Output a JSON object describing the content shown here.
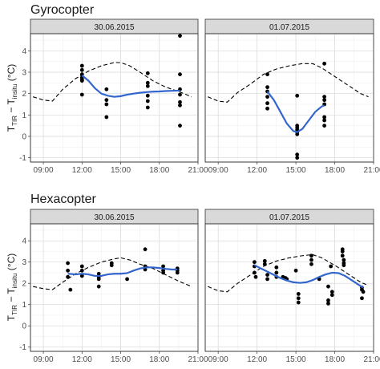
{
  "chart_data": [
    {
      "type": "scatter",
      "title": "Gyrocopter",
      "ylabel_main": "T",
      "ylabel_sub1": "TIR",
      "ylabel_mid": " − T",
      "ylabel_sub2": "insitu",
      "ylabel_unit": " (°C)",
      "ylim": [
        -1.2,
        4.8
      ],
      "yticks": [
        "-1",
        "0",
        "1",
        "2",
        "3",
        "4"
      ],
      "xlim": [
        8.0,
        21.0
      ],
      "xticks": [
        "09:00",
        "12:00",
        "15:00",
        "18:00",
        "21:00"
      ],
      "grid": true,
      "facets": [
        {
          "label": "30.06.2015",
          "points": [
            [
              12.0,
              3.3
            ],
            [
              12.0,
              3.1
            ],
            [
              12.0,
              2.9
            ],
            [
              12.0,
              2.75
            ],
            [
              12.0,
              2.65
            ],
            [
              12.0,
              2.6
            ],
            [
              12.0,
              1.95
            ],
            [
              13.9,
              2.2
            ],
            [
              13.9,
              1.7
            ],
            [
              13.9,
              1.5
            ],
            [
              13.9,
              0.9
            ],
            [
              17.1,
              2.95
            ],
            [
              17.1,
              2.5
            ],
            [
              17.1,
              2.35
            ],
            [
              17.1,
              1.9
            ],
            [
              17.1,
              1.65
            ],
            [
              17.1,
              1.35
            ],
            [
              19.6,
              4.7
            ],
            [
              19.6,
              2.9
            ],
            [
              19.6,
              2.2
            ],
            [
              19.6,
              1.95
            ],
            [
              19.6,
              1.6
            ],
            [
              19.6,
              1.45
            ],
            [
              19.6,
              0.5
            ]
          ],
          "smooth": [
            [
              12.0,
              2.85
            ],
            [
              12.5,
              2.6
            ],
            [
              13.0,
              2.25
            ],
            [
              13.5,
              2.0
            ],
            [
              14.0,
              1.9
            ],
            [
              14.5,
              1.85
            ],
            [
              15.0,
              1.88
            ],
            [
              15.5,
              1.95
            ],
            [
              16.0,
              2.0
            ],
            [
              16.5,
              2.04
            ],
            [
              17.0,
              2.07
            ],
            [
              17.5,
              2.09
            ],
            [
              18.0,
              2.1
            ],
            [
              18.5,
              2.12
            ],
            [
              19.0,
              2.13
            ],
            [
              19.6,
              2.14
            ]
          ],
          "insitu_dashed": [
            [
              8.2,
              1.85
            ],
            [
              9.0,
              1.7
            ],
            [
              9.7,
              1.65
            ],
            [
              10.5,
              2.2
            ],
            [
              11.5,
              2.7
            ],
            [
              12.5,
              3.05
            ],
            [
              13.5,
              3.3
            ],
            [
              14.5,
              3.45
            ],
            [
              15.0,
              3.45
            ],
            [
              15.7,
              3.3
            ],
            [
              16.5,
              3.0
            ],
            [
              17.5,
              2.6
            ],
            [
              18.5,
              2.3
            ],
            [
              19.5,
              2.1
            ],
            [
              20.5,
              1.85
            ]
          ]
        },
        {
          "label": "01.07.2015",
          "points": [
            [
              12.8,
              2.9
            ],
            [
              12.8,
              2.3
            ],
            [
              12.8,
              2.1
            ],
            [
              12.8,
              1.85
            ],
            [
              12.8,
              1.55
            ],
            [
              12.8,
              1.3
            ],
            [
              15.1,
              1.9
            ],
            [
              15.1,
              0.5
            ],
            [
              15.1,
              0.4
            ],
            [
              15.1,
              0.3
            ],
            [
              15.1,
              0.2
            ],
            [
              15.1,
              0.1
            ],
            [
              15.1,
              -0.85
            ],
            [
              15.1,
              -1.0
            ],
            [
              17.2,
              3.4
            ],
            [
              17.2,
              1.85
            ],
            [
              17.2,
              1.7
            ],
            [
              17.2,
              1.5
            ],
            [
              17.2,
              0.9
            ],
            [
              17.2,
              0.75
            ],
            [
              17.2,
              0.5
            ]
          ],
          "smooth": [
            [
              12.8,
              2.1
            ],
            [
              13.3,
              1.7
            ],
            [
              13.8,
              1.15
            ],
            [
              14.3,
              0.6
            ],
            [
              14.8,
              0.25
            ],
            [
              15.1,
              0.2
            ],
            [
              15.5,
              0.35
            ],
            [
              16.0,
              0.75
            ],
            [
              16.5,
              1.15
            ],
            [
              17.0,
              1.4
            ],
            [
              17.2,
              1.45
            ]
          ],
          "insitu_dashed": [
            [
              8.2,
              1.85
            ],
            [
              9.0,
              1.65
            ],
            [
              9.7,
              1.6
            ],
            [
              10.5,
              2.05
            ],
            [
              11.5,
              2.45
            ],
            [
              12.5,
              2.9
            ],
            [
              13.5,
              3.15
            ],
            [
              14.5,
              3.3
            ],
            [
              15.5,
              3.4
            ],
            [
              16.3,
              3.4
            ],
            [
              17.0,
              3.2
            ],
            [
              18.0,
              2.8
            ],
            [
              19.0,
              2.4
            ],
            [
              20.0,
              2.0
            ],
            [
              20.6,
              1.85
            ]
          ]
        }
      ]
    },
    {
      "type": "scatter",
      "title": "Hexacopter",
      "ylabel_main": "T",
      "ylabel_sub1": "TIR",
      "ylabel_mid": " − T",
      "ylabel_sub2": "insitu",
      "ylabel_unit": " (°C)",
      "ylim": [
        -1.2,
        4.8
      ],
      "yticks": [
        "-1",
        "0",
        "1",
        "2",
        "3",
        "4"
      ],
      "xlim": [
        8.0,
        21.0
      ],
      "xticks": [
        "09:00",
        "12:00",
        "15:00",
        "18:00",
        "21:00"
      ],
      "grid": true,
      "facets": [
        {
          "label": "30.06.2015",
          "points": [
            [
              10.9,
              2.95
            ],
            [
              10.9,
              2.6
            ],
            [
              10.9,
              2.3
            ],
            [
              11.1,
              1.7
            ],
            [
              12.0,
              2.8
            ],
            [
              12.0,
              2.6
            ],
            [
              12.0,
              2.35
            ],
            [
              13.3,
              2.45
            ],
            [
              13.3,
              2.3
            ],
            [
              13.3,
              2.2
            ],
            [
              13.3,
              1.85
            ],
            [
              14.3,
              2.95
            ],
            [
              14.3,
              2.85
            ],
            [
              15.5,
              2.2
            ],
            [
              16.9,
              3.6
            ],
            [
              16.9,
              2.8
            ],
            [
              16.9,
              2.65
            ],
            [
              18.3,
              2.8
            ],
            [
              18.3,
              2.6
            ],
            [
              18.3,
              2.5
            ],
            [
              19.4,
              2.7
            ],
            [
              19.4,
              2.6
            ],
            [
              19.4,
              2.5
            ]
          ],
          "smooth": [
            [
              10.9,
              2.45
            ],
            [
              11.5,
              2.42
            ],
            [
              12.0,
              2.45
            ],
            [
              12.5,
              2.42
            ],
            [
              13.0,
              2.35
            ],
            [
              13.5,
              2.35
            ],
            [
              14.0,
              2.42
            ],
            [
              14.5,
              2.45
            ],
            [
              15.0,
              2.45
            ],
            [
              15.5,
              2.48
            ],
            [
              16.0,
              2.6
            ],
            [
              16.5,
              2.7
            ],
            [
              17.0,
              2.75
            ],
            [
              17.5,
              2.75
            ],
            [
              18.0,
              2.72
            ],
            [
              18.5,
              2.68
            ],
            [
              19.0,
              2.65
            ],
            [
              19.4,
              2.65
            ]
          ],
          "insitu_dashed": [
            [
              8.2,
              1.85
            ],
            [
              9.0,
              1.75
            ],
            [
              9.7,
              1.7
            ],
            [
              10.5,
              2.05
            ],
            [
              11.5,
              2.45
            ],
            [
              12.5,
              2.75
            ],
            [
              13.5,
              3.0
            ],
            [
              14.5,
              3.15
            ],
            [
              15.0,
              3.2
            ],
            [
              15.7,
              3.1
            ],
            [
              16.5,
              2.9
            ],
            [
              17.5,
              2.7
            ],
            [
              18.5,
              2.4
            ],
            [
              19.5,
              2.1
            ],
            [
              20.5,
              1.85
            ]
          ]
        },
        {
          "label": "01.07.2015",
          "points": [
            [
              11.8,
              3.0
            ],
            [
              11.8,
              2.8
            ],
            [
              11.8,
              2.5
            ],
            [
              11.9,
              2.3
            ],
            [
              12.6,
              3.05
            ],
            [
              12.6,
              2.9
            ],
            [
              12.8,
              2.4
            ],
            [
              12.8,
              2.2
            ],
            [
              13.5,
              2.75
            ],
            [
              13.5,
              2.5
            ],
            [
              13.5,
              2.3
            ],
            [
              14.0,
              2.3
            ],
            [
              14.2,
              2.25
            ],
            [
              14.3,
              2.2
            ],
            [
              15.0,
              2.6
            ],
            [
              15.2,
              1.5
            ],
            [
              15.2,
              1.3
            ],
            [
              15.2,
              1.1
            ],
            [
              16.2,
              3.3
            ],
            [
              16.2,
              3.1
            ],
            [
              16.2,
              2.9
            ],
            [
              16.8,
              2.2
            ],
            [
              17.5,
              1.85
            ],
            [
              17.5,
              1.2
            ],
            [
              17.5,
              1.05
            ],
            [
              17.7,
              2.8
            ],
            [
              17.8,
              1.6
            ],
            [
              17.8,
              1.45
            ],
            [
              18.6,
              3.6
            ],
            [
              18.6,
              3.5
            ],
            [
              18.6,
              3.3
            ],
            [
              18.7,
              3.1
            ],
            [
              18.7,
              2.95
            ],
            [
              18.7,
              2.85
            ],
            [
              20.1,
              1.8
            ],
            [
              20.1,
              1.7
            ],
            [
              20.2,
              1.6
            ],
            [
              20.1,
              1.3
            ]
          ],
          "smooth": [
            [
              11.8,
              2.85
            ],
            [
              12.3,
              2.7
            ],
            [
              12.8,
              2.55
            ],
            [
              13.3,
              2.4
            ],
            [
              13.8,
              2.25
            ],
            [
              14.3,
              2.13
            ],
            [
              14.8,
              2.05
            ],
            [
              15.3,
              2.02
            ],
            [
              15.8,
              2.05
            ],
            [
              16.3,
              2.15
            ],
            [
              16.8,
              2.3
            ],
            [
              17.3,
              2.42
            ],
            [
              17.8,
              2.5
            ],
            [
              18.3,
              2.48
            ],
            [
              18.8,
              2.35
            ],
            [
              19.3,
              2.15
            ],
            [
              19.8,
              1.95
            ],
            [
              20.2,
              1.8
            ]
          ],
          "insitu_dashed": [
            [
              8.2,
              1.85
            ],
            [
              9.0,
              1.65
            ],
            [
              9.7,
              1.6
            ],
            [
              10.5,
              2.0
            ],
            [
              11.5,
              2.4
            ],
            [
              12.5,
              2.8
            ],
            [
              13.5,
              3.05
            ],
            [
              14.5,
              3.2
            ],
            [
              15.5,
              3.3
            ],
            [
              16.3,
              3.35
            ],
            [
              17.0,
              3.2
            ],
            [
              18.0,
              2.85
            ],
            [
              19.0,
              2.45
            ],
            [
              20.0,
              2.05
            ],
            [
              20.6,
              1.9
            ]
          ]
        }
      ]
    }
  ]
}
